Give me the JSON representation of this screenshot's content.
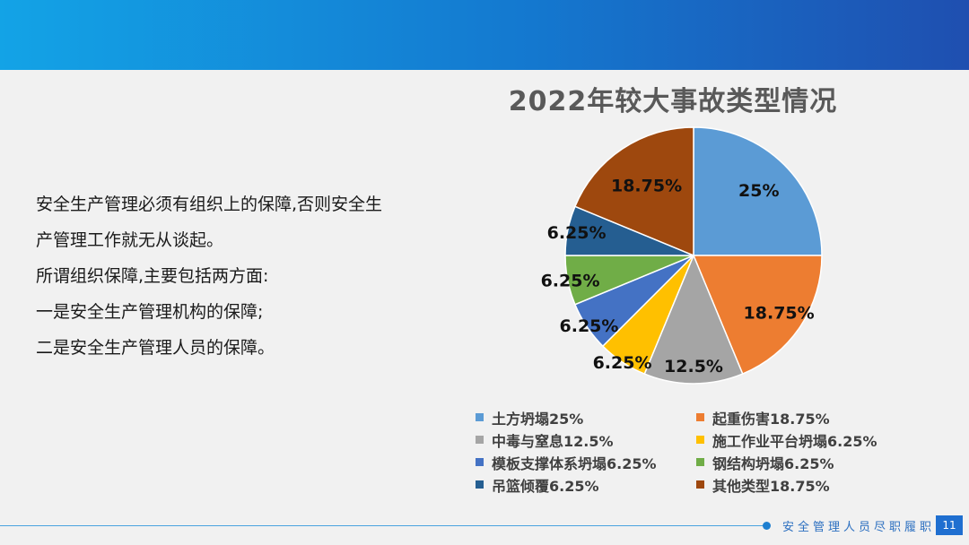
{
  "slide": {
    "body_lines": [
      "安全生产管理必须有组织上的保障,否则安全生",
      "产管理工作就无从谈起。",
      "所谓组织保障,主要包括两方面:",
      "一是安全生产管理机构的保障;",
      "二是安全生产管理人员的保障。"
    ],
    "footer_text": "安全管理人员尽职履职",
    "page_number": "11"
  },
  "chart_data": {
    "type": "pie",
    "title": "2022年较大事故类型情况",
    "legend_position": "bottom",
    "slices": [
      {
        "name": "土方坍塌",
        "value": 25,
        "label": "25%",
        "legend": "土方坍塌25%",
        "color": "#5b9bd5"
      },
      {
        "name": "起重伤害",
        "value": 18.75,
        "label": "18.75%",
        "legend": "起重伤害18.75%",
        "color": "#ed7d31"
      },
      {
        "name": "中毒与窒息",
        "value": 12.5,
        "label": "12.5%",
        "legend": "中毒与窒息12.5%",
        "color": "#a5a5a5"
      },
      {
        "name": "施工作业平台坍塌",
        "value": 6.25,
        "label": "6.25%",
        "legend": "施工作业平台坍塌6.25%",
        "color": "#ffc000"
      },
      {
        "name": "模板支撑体系坍塌",
        "value": 6.25,
        "label": "6.25%",
        "legend": "模板支撑体系坍塌6.25%",
        "color": "#4472c4"
      },
      {
        "name": "钢结构坍塌",
        "value": 6.25,
        "label": "6.25%",
        "legend": "钢结构坍塌6.25%",
        "color": "#70ad47"
      },
      {
        "name": "吊篮倾覆",
        "value": 6.25,
        "label": "6.25%",
        "legend": "吊篮倾覆6.25%",
        "color": "#255e91"
      },
      {
        "name": "其他类型",
        "value": 18.75,
        "label": "18.75%",
        "legend": "其他类型18.75%",
        "color": "#9e480e"
      }
    ]
  }
}
